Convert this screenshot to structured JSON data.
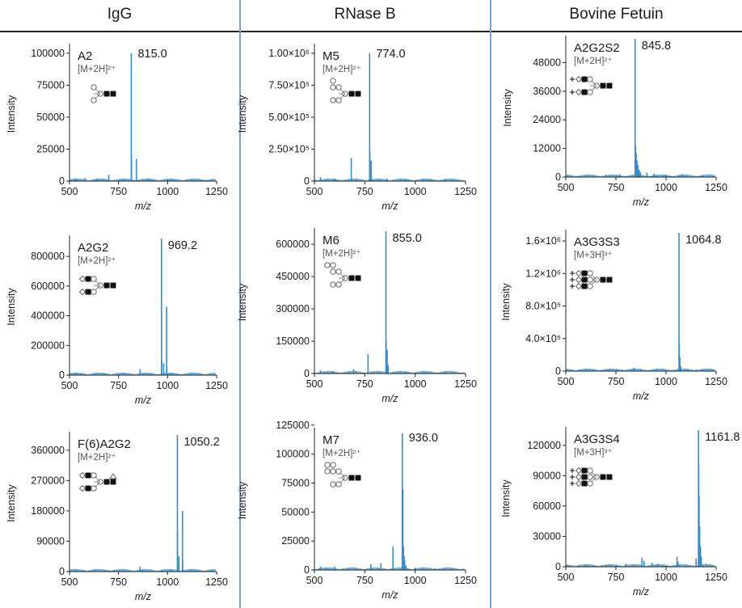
{
  "columns": [
    {
      "title": "IgG"
    },
    {
      "title": "RNase B"
    },
    {
      "title": "Bovine Fetuin"
    }
  ],
  "colors": {
    "spectrum": "#3a8cc4",
    "divider": "#7aa3c7",
    "axis": "#222222"
  },
  "chart_data": [
    {
      "type": "bar",
      "panel": "IgG A2",
      "glycan": "A2",
      "ion": "[M+2H]²⁺",
      "peak_label": "815.0",
      "xlabel": "m/z",
      "ylabel": "Intensity",
      "xlim": [
        500,
        1250
      ],
      "ylim": [
        0,
        105000
      ],
      "xticks": [
        500,
        750,
        1000,
        1250
      ],
      "yticks": [
        0,
        25000,
        50000,
        75000,
        100000
      ],
      "ytick_labels": [
        "0",
        "25000",
        "50000",
        "75000",
        "100000"
      ],
      "peaks": [
        [
          815,
          100000
        ],
        [
          816,
          20000
        ],
        [
          841,
          17500
        ],
        [
          700,
          5000
        ],
        [
          580,
          2500
        ],
        [
          640,
          2000
        ],
        [
          900,
          2000
        ],
        [
          1000,
          1500
        ],
        [
          1100,
          1200
        ],
        [
          1200,
          1000
        ],
        [
          530,
          1500
        ]
      ]
    },
    {
      "type": "bar",
      "panel": "RNase B M5",
      "glycan": "M5",
      "ion": "[M+2H]²⁺",
      "peak_label": "774.0",
      "xlabel": "m/z",
      "ylabel": "Intensity",
      "xlim": [
        500,
        1250
      ],
      "ylim": [
        0,
        1050000
      ],
      "xticks": [
        500,
        750,
        1000,
        1250
      ],
      "yticks": [
        0,
        250000,
        500000,
        750000,
        1000000
      ],
      "ytick_labels": [
        "0",
        "2.50×10⁵",
        "5.00×10⁵",
        "7.50×10⁵",
        "1.00×10⁶"
      ],
      "peaks": [
        [
          774,
          1000000
        ],
        [
          775,
          230000
        ],
        [
          782,
          160000
        ],
        [
          683,
          180000
        ],
        [
          530,
          30000
        ],
        [
          600,
          20000
        ],
        [
          860,
          20000
        ],
        [
          950,
          15000
        ],
        [
          1050,
          10000
        ],
        [
          1150,
          8000
        ]
      ]
    },
    {
      "type": "bar",
      "panel": "Bovine Fetuin A2G2S2",
      "glycan": "A2G2S2",
      "ion": "[M+2H]²⁺",
      "peak_label": "845.8",
      "xlabel": "m/z",
      "ylabel": "Intensity",
      "xlim": [
        500,
        1250
      ],
      "ylim": [
        0,
        58000
      ],
      "xticks": [
        500,
        750,
        1000,
        1250
      ],
      "yticks": [
        0,
        12000,
        24000,
        36000,
        48000
      ],
      "ytick_labels": [
        "0",
        "12000",
        "24000",
        "36000",
        "48000"
      ],
      "peaks": [
        [
          845.8,
          58000
        ],
        [
          848,
          13000
        ],
        [
          851,
          10000
        ],
        [
          855,
          7000
        ],
        [
          860,
          5000
        ],
        [
          866,
          3000
        ],
        [
          872,
          2000
        ],
        [
          905,
          1800
        ],
        [
          940,
          1500
        ],
        [
          1000,
          1000
        ],
        [
          1080,
          1200
        ],
        [
          1180,
          800
        ],
        [
          700,
          1000
        ],
        [
          770,
          1200
        ],
        [
          570,
          600
        ]
      ]
    },
    {
      "type": "bar",
      "panel": "IgG A2G2",
      "glycan": "A2G2",
      "ion": "[M+2H]²⁺",
      "peak_label": "969.2",
      "xlabel": "m/z",
      "ylabel": "Intensity",
      "xlim": [
        500,
        1250
      ],
      "ylim": [
        0,
        920000
      ],
      "xticks": [
        500,
        750,
        1000,
        1250
      ],
      "yticks": [
        0,
        200000,
        400000,
        600000,
        800000
      ],
      "ytick_labels": [
        "0",
        "200000",
        "400000",
        "600000",
        "800000"
      ],
      "peaks": [
        [
          969,
          920000
        ],
        [
          970,
          100000
        ],
        [
          980,
          80000
        ],
        [
          995,
          460000
        ],
        [
          996,
          60000
        ],
        [
          860,
          40000
        ],
        [
          560,
          10000
        ],
        [
          700,
          8000
        ],
        [
          1100,
          5000
        ]
      ]
    },
    {
      "type": "bar",
      "panel": "RNase B M6",
      "glycan": "M6",
      "ion": "[M+2H]²⁺",
      "peak_label": "855.0",
      "xlabel": "m/z",
      "ylabel": "Intensity",
      "xlim": [
        500,
        1250
      ],
      "ylim": [
        0,
        660000
      ],
      "xticks": [
        500,
        750,
        1000,
        1250
      ],
      "yticks": [
        0,
        150000,
        300000,
        450000,
        600000
      ],
      "ytick_labels": [
        "0",
        "150000",
        "300000",
        "450000",
        "600000"
      ],
      "peaks": [
        [
          855,
          660000
        ],
        [
          856,
          150000
        ],
        [
          861,
          110000
        ],
        [
          866,
          40000
        ],
        [
          766,
          90000
        ],
        [
          695,
          20000
        ],
        [
          530,
          15000
        ],
        [
          590,
          10000
        ],
        [
          950,
          8000
        ],
        [
          1050,
          5000
        ]
      ]
    },
    {
      "type": "bar",
      "panel": "Bovine Fetuin A3G3S3",
      "glycan": "A3G3S3",
      "ion": "[M+3H]³⁺",
      "peak_label": "1064.8",
      "xlabel": "m/z",
      "ylabel": "Intensity",
      "xlim": [
        500,
        1250
      ],
      "ylim": [
        0,
        1700000
      ],
      "xticks": [
        500,
        750,
        1000,
        1250
      ],
      "yticks": [
        0,
        400000,
        800000,
        1200000,
        1600000
      ],
      "ytick_labels": [
        "0",
        "4.0×10⁵",
        "8.0×10⁵",
        "1.2×10⁶",
        "1.6×10⁶"
      ],
      "peaks": [
        [
          1064.8,
          1700000
        ],
        [
          1066,
          330000
        ],
        [
          1069,
          170000
        ],
        [
          1073,
          60000
        ],
        [
          840,
          40000
        ],
        [
          780,
          20000
        ],
        [
          600,
          15000
        ],
        [
          700,
          10000
        ],
        [
          950,
          15000
        ],
        [
          1150,
          20000
        ],
        [
          1200,
          10000
        ]
      ]
    },
    {
      "type": "bar",
      "panel": "IgG F(6)A2G2",
      "glycan": "F(6)A2G2",
      "ion": "[M+2H]²⁺",
      "peak_label": "1050.2",
      "xlabel": "m/z",
      "ylabel": "Intensity",
      "xlim": [
        500,
        1250
      ],
      "ylim": [
        0,
        405000
      ],
      "xticks": [
        500,
        750,
        1000,
        1250
      ],
      "yticks": [
        0,
        90000,
        180000,
        270000,
        360000
      ],
      "ytick_labels": [
        "0",
        "90000",
        "180000",
        "270000",
        "360000"
      ],
      "peaks": [
        [
          1050,
          405000
        ],
        [
          1051,
          120000
        ],
        [
          1058,
          45000
        ],
        [
          1076,
          180000
        ],
        [
          1077,
          30000
        ],
        [
          860,
          15000
        ],
        [
          700,
          5000
        ],
        [
          580,
          4000
        ],
        [
          1150,
          3000
        ]
      ]
    },
    {
      "type": "bar",
      "panel": "RNase B M7",
      "glycan": "M7",
      "ion": "[M+2H]²⁺",
      "peak_label": "936.0",
      "xlabel": "m/z",
      "ylabel": "Intensity",
      "xlim": [
        500,
        1250
      ],
      "ylim": [
        0,
        120000
      ],
      "xticks": [
        500,
        750,
        1000,
        1250
      ],
      "yticks": [
        0,
        25000,
        50000,
        75000,
        100000,
        125000
      ],
      "ytick_labels": [
        "0",
        "25000",
        "50000",
        "75000",
        "100000",
        "125000"
      ],
      "peaks": [
        [
          936,
          118000
        ],
        [
          937,
          45000
        ],
        [
          939,
          70000
        ],
        [
          942,
          20000
        ],
        [
          945,
          12000
        ],
        [
          948,
          8000
        ],
        [
          955,
          4000
        ],
        [
          890,
          20000
        ],
        [
          830,
          6000
        ],
        [
          780,
          5000
        ],
        [
          600,
          3000
        ],
        [
          530,
          3000
        ],
        [
          1000,
          2000
        ],
        [
          1100,
          1500
        ]
      ]
    },
    {
      "type": "bar",
      "panel": "Bovine Fetuin A3G3S4",
      "glycan": "A3G3S4",
      "ion": "[M+3H]³⁺",
      "peak_label": "1161.8",
      "xlabel": "m/z",
      "ylabel": "Intensity",
      "xlim": [
        500,
        1250
      ],
      "ylim": [
        0,
        135000
      ],
      "xticks": [
        500,
        750,
        1000,
        1250
      ],
      "yticks": [
        0,
        30000,
        60000,
        90000,
        120000
      ],
      "ytick_labels": [
        "0",
        "30000",
        "60000",
        "90000",
        "120000"
      ],
      "peaks": [
        [
          1161.8,
          135000
        ],
        [
          1163,
          100000
        ],
        [
          1165,
          70000
        ],
        [
          1168,
          40000
        ],
        [
          1172,
          20000
        ],
        [
          1176,
          10000
        ],
        [
          1150,
          8000
        ],
        [
          1055,
          10000
        ],
        [
          1060,
          5000
        ],
        [
          880,
          9000
        ],
        [
          890,
          6000
        ],
        [
          930,
          4000
        ],
        [
          960,
          3000
        ],
        [
          700,
          2000
        ],
        [
          800,
          3000
        ],
        [
          600,
          1500
        ],
        [
          1200,
          3000
        ]
      ]
    }
  ]
}
